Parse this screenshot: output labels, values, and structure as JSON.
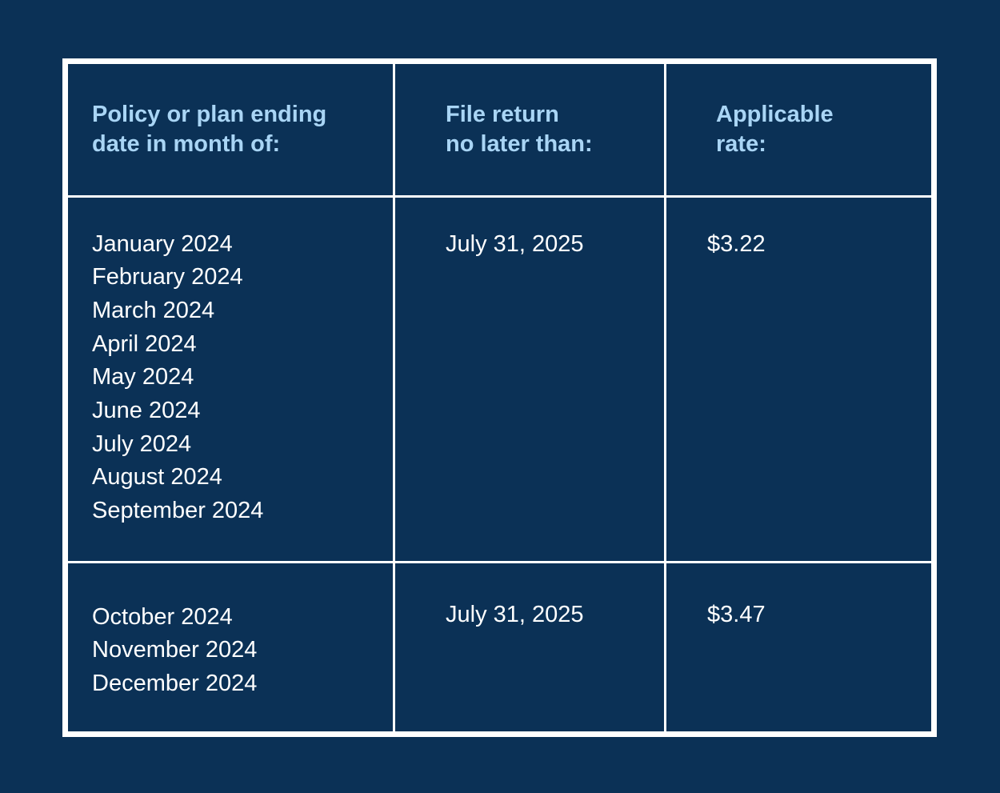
{
  "table": {
    "headers": [
      "Policy or plan ending\ndate in month of:",
      "File return\nno later than:",
      "Applicable\nrate:"
    ],
    "rows": [
      {
        "months": [
          "January 2024",
          "February 2024",
          "March 2024",
          "April 2024",
          "May 2024",
          "June 2024",
          "July 2024",
          "August 2024",
          "September 2024"
        ],
        "file_by": "July 31, 2025",
        "rate": "$3.22"
      },
      {
        "months": [
          "October 2024",
          "November 2024",
          "December 2024"
        ],
        "file_by": "July 31, 2025",
        "rate": "$3.47"
      }
    ]
  },
  "colors": {
    "background": "#0b3156",
    "header_text": "#a9d5f5",
    "body_text": "#ffffff",
    "border": "#ffffff"
  }
}
